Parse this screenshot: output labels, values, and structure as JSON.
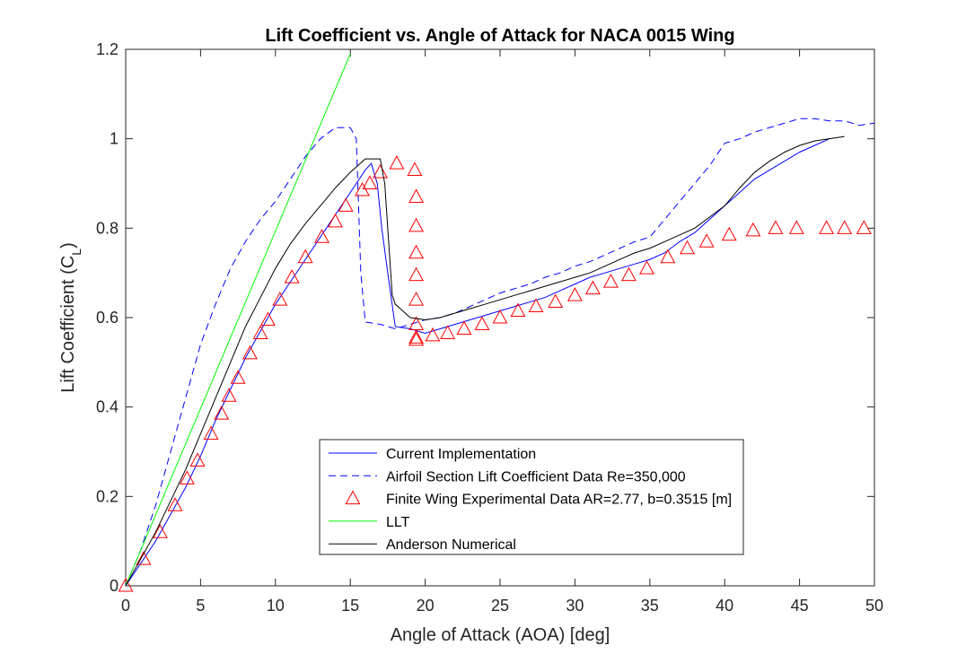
{
  "chart_data": {
    "type": "line",
    "title": "Lift Coefficient vs. Angle of Attack for NACA 0015 Wing",
    "xlabel": "Angle of Attack (AOA) [deg]",
    "ylabel": "Lift Coefficient (C",
    "ylabel_sub": "L",
    "ylabel_close": ")",
    "xlim": [
      0,
      50
    ],
    "ylim": [
      0,
      1.2
    ],
    "xticks": [
      0,
      5,
      10,
      15,
      20,
      25,
      30,
      35,
      40,
      45,
      50
    ],
    "yticks": [
      0,
      0.2,
      0.4,
      0.6,
      0.8,
      1,
      1.2
    ],
    "xtick_labels": [
      "0",
      "5",
      "10",
      "15",
      "20",
      "25",
      "30",
      "35",
      "40",
      "45",
      "50"
    ],
    "ytick_labels": [
      "0",
      "0.2",
      "0.4",
      "0.6",
      "0.8",
      "1",
      "1.2"
    ],
    "grid": false,
    "legend_position": "bottom-center",
    "series": [
      {
        "name": "Current Implementation",
        "style": "line",
        "dash": "solid",
        "color": "#0000ff",
        "x": [
          0,
          1,
          2,
          3,
          4,
          5,
          6,
          7,
          8,
          9,
          10,
          11,
          12,
          13,
          14,
          15,
          16,
          16.4,
          16.8,
          17.1,
          17.5,
          18,
          19,
          20,
          21,
          22,
          23,
          24,
          25,
          26,
          27,
          28,
          29,
          30,
          31,
          32,
          33,
          34,
          35,
          36,
          37,
          38,
          39,
          40,
          41,
          42,
          43,
          44,
          45,
          46,
          47
        ],
        "y": [
          0,
          0.05,
          0.1,
          0.16,
          0.22,
          0.29,
          0.37,
          0.44,
          0.51,
          0.57,
          0.63,
          0.68,
          0.73,
          0.78,
          0.83,
          0.88,
          0.93,
          0.945,
          0.9,
          0.8,
          0.7,
          0.58,
          0.575,
          0.565,
          0.575,
          0.585,
          0.595,
          0.605,
          0.615,
          0.625,
          0.635,
          0.645,
          0.66,
          0.675,
          0.69,
          0.7,
          0.71,
          0.72,
          0.73,
          0.745,
          0.77,
          0.79,
          0.82,
          0.85,
          0.88,
          0.91,
          0.93,
          0.95,
          0.97,
          0.985,
          1.0
        ]
      },
      {
        "name": "Airfoil Section Lift Coefficient Data Re=350,000",
        "style": "line",
        "dash": "dashed",
        "color": "#0000ff",
        "x": [
          0,
          1,
          2,
          3,
          4,
          5,
          6,
          7,
          8,
          9,
          10,
          11,
          12,
          13,
          14,
          15,
          15.4,
          15.7,
          16,
          17,
          18,
          19,
          20,
          21,
          22,
          23,
          24,
          25,
          26,
          27,
          28,
          29,
          30,
          31,
          32,
          33,
          34,
          35,
          36,
          37,
          38,
          39,
          40,
          41,
          42,
          43,
          44,
          45,
          46,
          47,
          48,
          49,
          50
        ],
        "y": [
          0,
          0.08,
          0.18,
          0.3,
          0.42,
          0.54,
          0.63,
          0.71,
          0.77,
          0.82,
          0.86,
          0.91,
          0.96,
          1.0,
          1.025,
          1.025,
          1.0,
          0.7,
          0.59,
          0.585,
          0.575,
          0.585,
          0.595,
          0.6,
          0.61,
          0.625,
          0.64,
          0.655,
          0.665,
          0.675,
          0.69,
          0.7,
          0.715,
          0.725,
          0.74,
          0.755,
          0.77,
          0.78,
          0.82,
          0.86,
          0.9,
          0.94,
          0.99,
          1.0,
          1.015,
          1.025,
          1.035,
          1.045,
          1.045,
          1.04,
          1.04,
          1.03,
          1.035
        ]
      },
      {
        "name": "Finite Wing Experimental Data AR=2.77, b=0.3515 [m]",
        "style": "markers",
        "marker": "triangle",
        "color": "#ff0000",
        "x": [
          0,
          1.2,
          2.3,
          3.3,
          4.1,
          4.8,
          5.7,
          6.4,
          6.9,
          7.5,
          8.3,
          9.0,
          9.5,
          10.3,
          11.1,
          12.0,
          13.1,
          14.0,
          14.7,
          15.8,
          16.3,
          17.0,
          18.1,
          19.3,
          19.4,
          19.4,
          19.4,
          19.4,
          19.4,
          19.4,
          19.4,
          19.4,
          20.5,
          21.5,
          22.6,
          23.8,
          25.0,
          26.2,
          27.4,
          28.7,
          30.0,
          31.2,
          32.4,
          33.6,
          34.8,
          36.2,
          37.5,
          38.8,
          40.3,
          41.9,
          43.4,
          44.8,
          46.8,
          48.0,
          49.3
        ],
        "y": [
          0,
          0.06,
          0.12,
          0.18,
          0.24,
          0.28,
          0.34,
          0.385,
          0.425,
          0.465,
          0.52,
          0.565,
          0.595,
          0.64,
          0.69,
          0.735,
          0.78,
          0.815,
          0.85,
          0.885,
          0.9,
          0.925,
          0.945,
          0.93,
          0.87,
          0.805,
          0.745,
          0.695,
          0.64,
          0.585,
          0.555,
          0.55,
          0.56,
          0.565,
          0.575,
          0.585,
          0.6,
          0.615,
          0.625,
          0.635,
          0.65,
          0.665,
          0.68,
          0.695,
          0.71,
          0.735,
          0.755,
          0.77,
          0.785,
          0.795,
          0.8,
          0.8,
          0.8,
          0.8,
          0.8
        ]
      },
      {
        "name": "LLT",
        "style": "line",
        "dash": "solid",
        "color": "#00ff00",
        "x": [
          0,
          15
        ],
        "y": [
          0,
          1.19
        ]
      },
      {
        "name": "Anderson Numerical",
        "style": "line",
        "dash": "solid",
        "color": "#000000",
        "x": [
          0,
          1,
          2,
          3,
          4,
          5,
          6,
          7,
          8,
          9,
          10,
          11,
          12,
          13,
          14,
          15,
          16,
          17,
          17.3,
          17.8,
          18,
          18.5,
          19,
          20,
          21,
          22,
          23,
          24,
          25,
          26,
          27,
          28,
          29,
          30,
          31,
          32,
          33,
          34,
          35,
          36,
          37,
          38,
          39,
          40,
          41,
          42,
          43,
          44,
          45,
          46,
          47,
          48
        ],
        "y": [
          0,
          0.06,
          0.12,
          0.19,
          0.26,
          0.34,
          0.42,
          0.5,
          0.58,
          0.645,
          0.71,
          0.765,
          0.81,
          0.85,
          0.89,
          0.925,
          0.955,
          0.955,
          0.9,
          0.65,
          0.63,
          0.615,
          0.6,
          0.595,
          0.6,
          0.61,
          0.62,
          0.63,
          0.64,
          0.65,
          0.66,
          0.67,
          0.68,
          0.69,
          0.7,
          0.715,
          0.73,
          0.745,
          0.755,
          0.77,
          0.785,
          0.8,
          0.825,
          0.85,
          0.89,
          0.925,
          0.95,
          0.97,
          0.985,
          0.995,
          1.0,
          1.005
        ]
      }
    ]
  },
  "colors": {
    "axis": "#262626",
    "current_implementation": "#0000ff",
    "airfoil_section": "#0000ff",
    "experimental": "#ff0000",
    "llt": "#00ff00",
    "anderson": "#000000"
  }
}
